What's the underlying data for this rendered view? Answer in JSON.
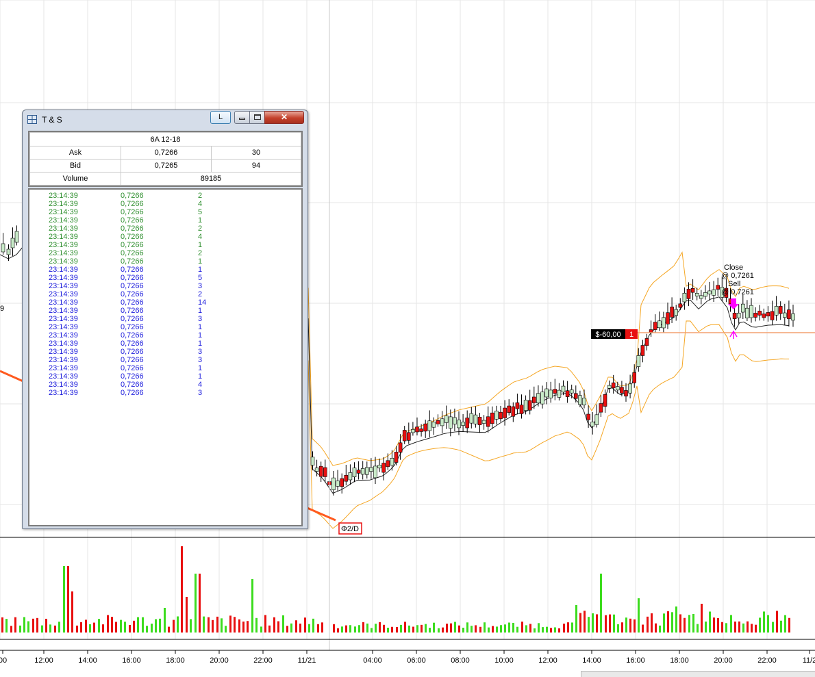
{
  "window": {
    "title": "T & S",
    "link_button": "L",
    "close_glyph": "✕",
    "min_glyph": "minimize-icon",
    "max_glyph": "maximize-icon"
  },
  "quote": {
    "symbol": "6A 12-18",
    "ask_label": "Ask",
    "ask_price": "0,7266",
    "ask_size": "30",
    "bid_label": "Bid",
    "bid_price": "0,7265",
    "bid_size": "94",
    "volume_label": "Volume",
    "volume": "89185"
  },
  "trades": [
    {
      "time": "23:14:39",
      "price": "0,7266",
      "size": "2",
      "side": "green"
    },
    {
      "time": "23:14:39",
      "price": "0,7266",
      "size": "4",
      "side": "green"
    },
    {
      "time": "23:14:39",
      "price": "0,7266",
      "size": "5",
      "side": "green"
    },
    {
      "time": "23:14:39",
      "price": "0,7266",
      "size": "1",
      "side": "green"
    },
    {
      "time": "23:14:39",
      "price": "0,7266",
      "size": "2",
      "side": "green"
    },
    {
      "time": "23:14:39",
      "price": "0,7266",
      "size": "4",
      "side": "green"
    },
    {
      "time": "23:14:39",
      "price": "0,7266",
      "size": "1",
      "side": "green"
    },
    {
      "time": "23:14:39",
      "price": "0,7266",
      "size": "2",
      "side": "green"
    },
    {
      "time": "23:14:39",
      "price": "0,7266",
      "size": "1",
      "side": "green"
    },
    {
      "time": "23:14:39",
      "price": "0,7266",
      "size": "1",
      "side": "blue"
    },
    {
      "time": "23:14:39",
      "price": "0,7266",
      "size": "5",
      "side": "blue"
    },
    {
      "time": "23:14:39",
      "price": "0,7266",
      "size": "3",
      "side": "blue"
    },
    {
      "time": "23:14:39",
      "price": "0,7266",
      "size": "2",
      "side": "blue"
    },
    {
      "time": "23:14:39",
      "price": "0,7266",
      "size": "14",
      "side": "blue"
    },
    {
      "time": "23:14:39",
      "price": "0,7266",
      "size": "1",
      "side": "blue"
    },
    {
      "time": "23:14:39",
      "price": "0,7266",
      "size": "3",
      "side": "blue"
    },
    {
      "time": "23:14:39",
      "price": "0,7266",
      "size": "1",
      "side": "blue"
    },
    {
      "time": "23:14:39",
      "price": "0,7266",
      "size": "1",
      "side": "blue"
    },
    {
      "time": "23:14:39",
      "price": "0,7266",
      "size": "1",
      "side": "blue"
    },
    {
      "time": "23:14:39",
      "price": "0,7266",
      "size": "3",
      "side": "blue"
    },
    {
      "time": "23:14:39",
      "price": "0,7266",
      "size": "3",
      "side": "blue"
    },
    {
      "time": "23:14:39",
      "price": "0,7266",
      "size": "1",
      "side": "blue"
    },
    {
      "time": "23:14:39",
      "price": "0,7266",
      "size": "1",
      "side": "blue"
    },
    {
      "time": "23:14:39",
      "price": "0,7266",
      "size": "4",
      "side": "blue"
    },
    {
      "time": "23:14:39",
      "price": "0,7266",
      "size": "3",
      "side": "blue"
    }
  ],
  "chart": {
    "x_ticks": [
      "00",
      "12:00",
      "14:00",
      "16:00",
      "18:00",
      "20:00",
      "22:00",
      "11/21",
      "04:00",
      "06:00",
      "08:00",
      "10:00",
      "12:00",
      "14:00",
      "16:00",
      "18:00",
      "20:00",
      "22:00",
      "11/2"
    ],
    "order_label": "Φ2/D",
    "position_pnl": "$-60,00",
    "position_qty": "1",
    "exec_close_label": "Close",
    "exec_close_price": "@ 0,7261",
    "exec_sell_label": "Sell",
    "exec_sell_price": "@ 0,7261",
    "left_edge_label": "9",
    "colors": {
      "up": "#3cdc1e",
      "down": "#e81010",
      "band": "#f5a623",
      "ma": "#222222",
      "grid": "#e6e6e6",
      "trendline": "#ff5a1f",
      "position_line": "#f4a070"
    }
  }
}
